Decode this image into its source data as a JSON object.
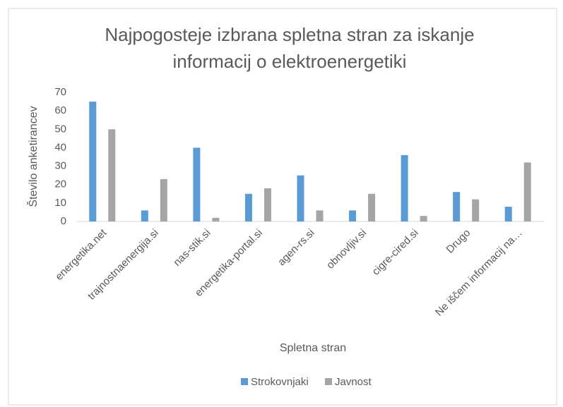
{
  "chart_data": {
    "type": "bar",
    "title": "Najpogosteje izbrana spletna stran za iskanje informacij o elektroenergetiki",
    "x_label": "Spletna stran",
    "y_label": "Število anketirancev",
    "categories": [
      "energetika.net",
      "trajnostnaenergija.si",
      "nas-stik.si",
      "energetika-portal.si",
      "agen-rs.si",
      "obnovljiv.si",
      "cigre-cired.si",
      "Drugo",
      "Ne iščem informacij na…"
    ],
    "series": [
      {
        "name": "Strokovnjaki",
        "color": "#5b9bd5",
        "values": [
          65,
          6,
          40,
          15,
          25,
          6,
          36,
          16,
          8
        ]
      },
      {
        "name": "Javnost",
        "color": "#a5a5a5",
        "values": [
          50,
          23,
          2,
          18,
          6,
          15,
          3,
          12,
          32
        ]
      }
    ],
    "ylim": [
      0,
      70
    ],
    "yticks": [
      0,
      10,
      20,
      30,
      40,
      50,
      60,
      70
    ],
    "grid": false,
    "legend": "bottom"
  }
}
